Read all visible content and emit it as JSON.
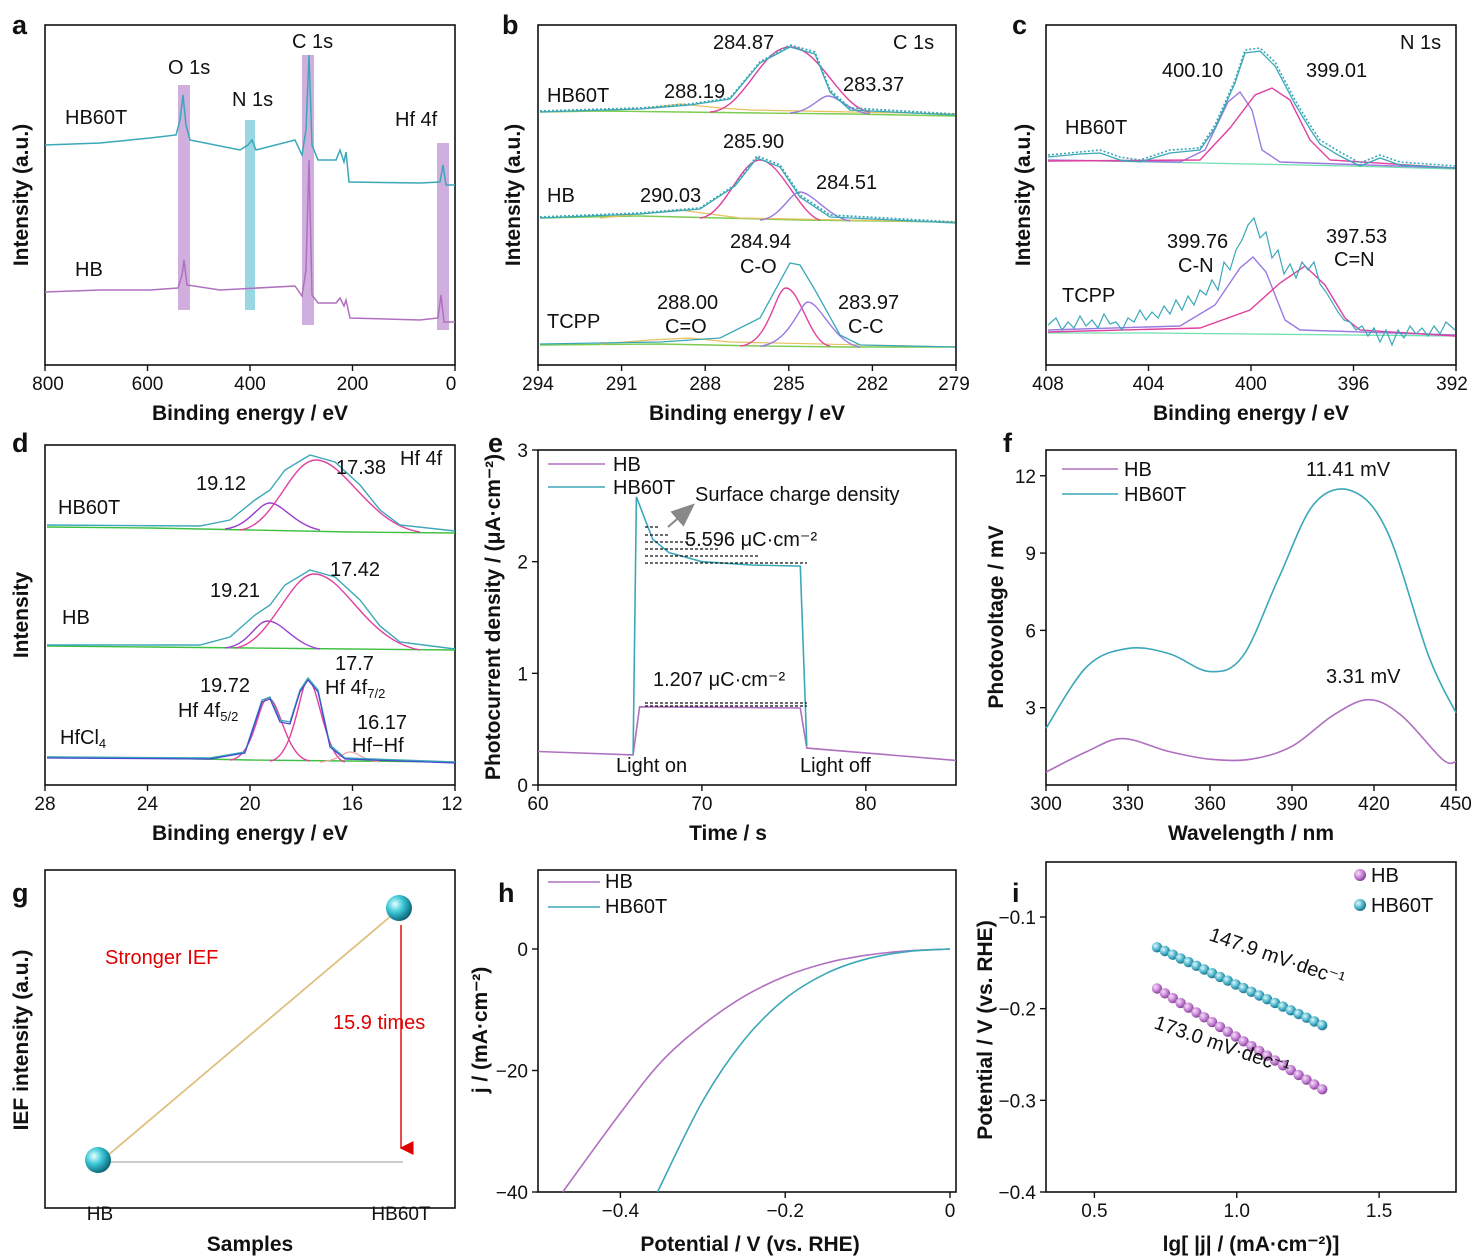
{
  "panels": {
    "a": {
      "label": "a",
      "xlabel": "Binding energy / eV",
      "ylabel": "Intensity (a.u.)",
      "xticks": [
        "800",
        "600",
        "400",
        "200",
        "0"
      ],
      "peak_labels": [
        "O 1s",
        "N 1s",
        "C 1s",
        "Hf 4f"
      ],
      "series_labels": [
        "HB60T",
        "HB"
      ]
    },
    "b": {
      "label": "b",
      "xlabel": "Binding energy / eV",
      "ylabel": "Intensity (a.u.)",
      "xticks": [
        "294",
        "291",
        "288",
        "285",
        "282",
        "279"
      ],
      "title": "C 1s",
      "series_labels": [
        "HB60T",
        "HB",
        "TCPP"
      ],
      "annotations": [
        "284.87",
        "288.19",
        "283.37",
        "285.90",
        "290.03",
        "284.51",
        "284.94",
        "C-O",
        "288.00",
        "C=O",
        "283.97",
        "C-C"
      ]
    },
    "c": {
      "label": "c",
      "xlabel": "Binding energy / eV",
      "ylabel": "Intensity (a.u.)",
      "xticks": [
        "408",
        "404",
        "400",
        "396",
        "392"
      ],
      "title": "N 1s",
      "series_labels": [
        "HB60T",
        "TCPP"
      ],
      "annotations": [
        "400.10",
        "399.01",
        "399.76",
        "C-N",
        "397.53",
        "C=N"
      ]
    },
    "d": {
      "label": "d",
      "xlabel": "Binding energy / eV",
      "ylabel": "Intensity",
      "xticks": [
        "28",
        "24",
        "20",
        "16",
        "12"
      ],
      "title": "Hf 4f",
      "series_labels": [
        "HB60T",
        "HB",
        "HfCl"
      ],
      "series_sub": "4",
      "annotations": [
        "19.12",
        "17.38",
        "19.21",
        "17.42",
        "19.72",
        "17.7",
        "16.17",
        "Hf−Hf"
      ],
      "hf52_main": "Hf 4f",
      "hf52_sub": "5/2",
      "hf72_main": "Hf 4f",
      "hf72_sub": "7/2"
    },
    "e": {
      "label": "e",
      "xlabel": "Time / s",
      "ylabel": "Photocurrent density / (μA·cm⁻²)",
      "xticks": [
        "60",
        "70",
        "80"
      ],
      "yticks": [
        "0",
        "1",
        "2",
        "3"
      ],
      "legend": [
        "HB",
        "HB60T"
      ],
      "annotations": [
        "Surface charge density",
        "5.596 μC·cm⁻²",
        "1.207 μC·cm⁻²",
        "Light on",
        "Light off"
      ]
    },
    "f": {
      "label": "f",
      "xlabel": "Wavelength / nm",
      "ylabel": "Photovoltage / mV",
      "xticks": [
        "300",
        "330",
        "360",
        "390",
        "420",
        "450"
      ],
      "yticks": [
        "3",
        "6",
        "9",
        "12"
      ],
      "legend": [
        "HB",
        "HB60T"
      ],
      "annotations": [
        "11.41 mV",
        "3.31 mV"
      ]
    },
    "g": {
      "label": "g",
      "xlabel": "Samples",
      "ylabel": "IEF intensity (a.u.)",
      "xticks": [
        "HB",
        "HB60T"
      ],
      "annotations": [
        "Stronger IEF",
        "15.9 times"
      ]
    },
    "h": {
      "label": "h",
      "xlabel": "Potential / V (vs. RHE)",
      "ylabel": "j / (mA·cm⁻²)",
      "xticks": [
        "−0.4",
        "−0.2",
        "0"
      ],
      "yticks": [
        "0",
        "−20",
        "−40"
      ],
      "legend": [
        "HB",
        "HB60T"
      ]
    },
    "i": {
      "label": "i",
      "xlabel": "lg[ |j| / (mA·cm⁻²)]",
      "ylabel": "Potential / V (vs. RHE)",
      "xticks": [
        "0.5",
        "1.0",
        "1.5"
      ],
      "yticks": [
        "−0.1",
        "−0.2",
        "−0.3",
        "−0.4"
      ],
      "legend": [
        "HB",
        "HB60T"
      ],
      "annotations": [
        "147.9 mV·dec⁻¹",
        "173.0 mV·dec⁻¹"
      ]
    }
  },
  "colors": {
    "HB": "#b070c0",
    "HB60T": "#3aa8b8",
    "pink": "#e040a0",
    "purple": "#9a7ae0",
    "background_fit": "#7ccc50",
    "band_violet": "#c8a0d8",
    "band_cyan": "#88d0e0",
    "red": "#e00000"
  },
  "chart_data": [
    {
      "panel": "a",
      "type": "line",
      "xlim": [
        800,
        0
      ],
      "series": [
        {
          "name": "HB60T",
          "peaks_eV": [
            532,
            400,
            285,
            18
          ]
        },
        {
          "name": "HB",
          "peaks_eV": [
            532,
            285,
            18
          ]
        }
      ],
      "grid": false
    },
    {
      "panel": "b",
      "type": "line",
      "xlim": [
        294,
        279
      ],
      "series": [
        {
          "name": "HB60T",
          "fit_peaks_eV": [
            284.87,
            288.19,
            283.37
          ]
        },
        {
          "name": "HB",
          "fit_peaks_eV": [
            285.9,
            290.03,
            284.51
          ]
        },
        {
          "name": "TCPP",
          "fit_peaks_eV": [
            284.94,
            288.0,
            283.97
          ]
        }
      ],
      "grid": false
    },
    {
      "panel": "c",
      "type": "line",
      "xlim": [
        408,
        392
      ],
      "series": [
        {
          "name": "HB60T",
          "fit_peaks_eV": [
            400.1,
            399.01
          ]
        },
        {
          "name": "TCPP",
          "fit_peaks_eV": [
            399.76,
            397.53
          ]
        }
      ],
      "grid": false
    },
    {
      "panel": "d",
      "type": "line",
      "xlim": [
        28,
        12
      ],
      "series": [
        {
          "name": "HB60T",
          "fit_peaks_eV": [
            19.12,
            17.38
          ]
        },
        {
          "name": "HB",
          "fit_peaks_eV": [
            19.21,
            17.42
          ]
        },
        {
          "name": "HfCl4",
          "fit_peaks_eV": [
            19.72,
            17.7,
            16.17
          ]
        }
      ],
      "grid": false
    },
    {
      "panel": "e",
      "type": "line",
      "xlim": [
        60,
        85.5
      ],
      "ylim": [
        0,
        3
      ],
      "series": [
        {
          "name": "HB",
          "x": [
            60,
            65.8,
            66.2,
            76,
            76.4,
            85.5
          ],
          "y": [
            0.3,
            0.27,
            0.7,
            0.69,
            0.33,
            0.22
          ]
        },
        {
          "name": "HB60T",
          "x": [
            65.8,
            66,
            67,
            68,
            70,
            73,
            76,
            76.4
          ],
          "y": [
            0.27,
            2.58,
            2.2,
            2.08,
            2.0,
            1.97,
            1.96,
            0.35
          ]
        }
      ],
      "legend": "top-left",
      "grid": false
    },
    {
      "panel": "f",
      "type": "line",
      "xlim": [
        300,
        450
      ],
      "ylim": [
        0,
        13
      ],
      "series": [
        {
          "name": "HB",
          "x": [
            300,
            315,
            328,
            345,
            360,
            375,
            390,
            405,
            418,
            430,
            445,
            450
          ],
          "y": [
            0.5,
            1.3,
            1.8,
            1.3,
            1.0,
            1.0,
            1.5,
            2.7,
            3.31,
            2.7,
            1.0,
            0.9
          ]
        },
        {
          "name": "HB60T",
          "x": [
            300,
            315,
            330,
            345,
            360,
            372,
            385,
            398,
            412,
            425,
            440,
            450
          ],
          "y": [
            2.2,
            4.6,
            5.3,
            5.1,
            4.4,
            5.0,
            8.0,
            10.9,
            11.41,
            9.8,
            5.0,
            2.8
          ]
        }
      ],
      "legend": "top-left",
      "grid": false
    },
    {
      "panel": "g",
      "type": "scatter",
      "categories": [
        "HB",
        "HB60T"
      ],
      "values": [
        1,
        15.9
      ],
      "grid": false
    },
    {
      "panel": "h",
      "type": "line",
      "xlim": [
        -0.5,
        0
      ],
      "ylim": [
        -40,
        13
      ],
      "series": [
        {
          "name": "HB",
          "x": [
            -0.47,
            -0.4,
            -0.35,
            -0.3,
            -0.25,
            -0.2,
            -0.15,
            -0.1,
            -0.05,
            0
          ],
          "y": [
            -40,
            -27,
            -18.5,
            -12.5,
            -7.8,
            -4.5,
            -2.3,
            -1.0,
            -0.3,
            0
          ]
        },
        {
          "name": "HB60T",
          "x": [
            -0.355,
            -0.3,
            -0.25,
            -0.2,
            -0.15,
            -0.1,
            -0.05,
            0
          ],
          "y": [
            -40,
            -25,
            -15,
            -8.2,
            -4.0,
            -1.6,
            -0.4,
            0
          ]
        }
      ],
      "legend": "top-left",
      "grid": false
    },
    {
      "panel": "i",
      "type": "scatter",
      "xlim": [
        0.33,
        1.77
      ],
      "ylim": [
        -0.4,
        -0.04
      ],
      "series": [
        {
          "name": "HB",
          "x": [
            0.72,
            1.3
          ],
          "y": [
            -0.178,
            -0.288
          ]
        },
        {
          "name": "HB60T",
          "x": [
            0.72,
            1.3
          ],
          "y": [
            -0.133,
            -0.218
          ]
        }
      ],
      "legend": "top-right",
      "grid": false
    }
  ]
}
